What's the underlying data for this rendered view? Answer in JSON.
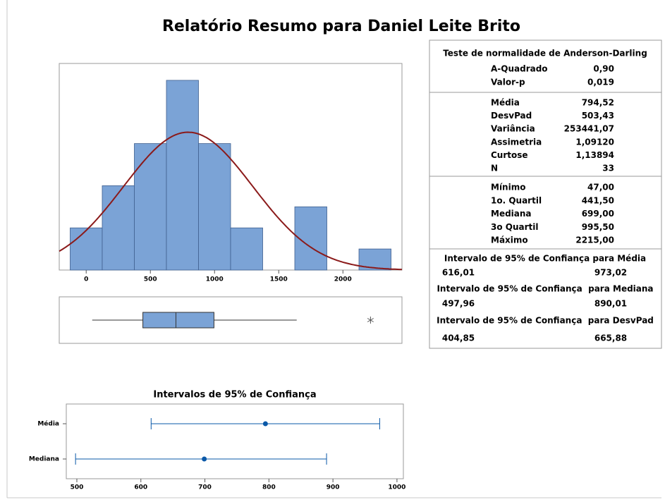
{
  "report_title": "Relatório Resumo para Daniel Leite Brito",
  "chart_data": [
    {
      "type": "histogram",
      "bins": [
        -125,
        125,
        375,
        625,
        875,
        1125,
        1375,
        1625,
        1875,
        2125,
        2375
      ],
      "counts": [
        2,
        4,
        6,
        9,
        6,
        2,
        0,
        3,
        0,
        1
      ],
      "color": "#7ba3d6",
      "edge_color": "#3f5f8f",
      "xlim": [
        -210,
        2460
      ],
      "xticks": [
        0,
        500,
        1000,
        1500,
        2000
      ],
      "ylim": [
        0,
        9.8
      ],
      "fit": {
        "mean": 794.52,
        "sd": 503.43
      },
      "fit_color": "#8b1a1a"
    },
    {
      "type": "boxplot",
      "whisker_low": 47,
      "q1": 441.5,
      "median": 699,
      "q3": 995.5,
      "whisker_high": 1640,
      "outliers": [
        2215
      ],
      "color": "#7ba3d6",
      "xlim": [
        -210,
        2460
      ]
    },
    {
      "type": "interval",
      "title": "Intervalos de 95% de Confiança",
      "categories": [
        "Média",
        "Mediana"
      ],
      "estimates": [
        794.52,
        699
      ],
      "lower": [
        616.01,
        497.96
      ],
      "upper": [
        973.02,
        890.01
      ],
      "color": "#0a58a8",
      "xlim": [
        483.5,
        1010
      ],
      "xticks": [
        500,
        600,
        700,
        800,
        900,
        1000
      ]
    }
  ],
  "stats": {
    "normality": {
      "title": "Teste de normalidade de Anderson-Darling",
      "rows": [
        [
          "A-Quadrado",
          "0,90"
        ],
        [
          "Valor-p",
          "0,019"
        ]
      ]
    },
    "descriptive": [
      [
        "Média",
        "794,52"
      ],
      [
        "DesvPad",
        "503,43"
      ],
      [
        "Variância",
        "253441,07"
      ],
      [
        "Assimetria",
        "1,09120"
      ],
      [
        "Curtose",
        "1,13894"
      ],
      [
        "N",
        "33"
      ]
    ],
    "quantiles": [
      [
        "Mínimo",
        "47,00"
      ],
      [
        "1o. Quartil",
        "441,50"
      ],
      [
        "Mediana",
        "699,00"
      ],
      [
        "3o Quartil",
        "995,50"
      ],
      [
        "Máximo",
        "2215,00"
      ]
    ],
    "intervals": [
      {
        "title": "Intervalo de 95% de Confiança para Média",
        "values": [
          "616,01",
          "973,02"
        ]
      },
      {
        "title": "Intervalo de 95% de Confiança  para Mediana",
        "values": [
          "497,96",
          "890,01"
        ]
      },
      {
        "title": "Intervalo de 95% de Confiança  para DesvPad",
        "values": [
          "404,85",
          "665,88"
        ]
      }
    ]
  }
}
